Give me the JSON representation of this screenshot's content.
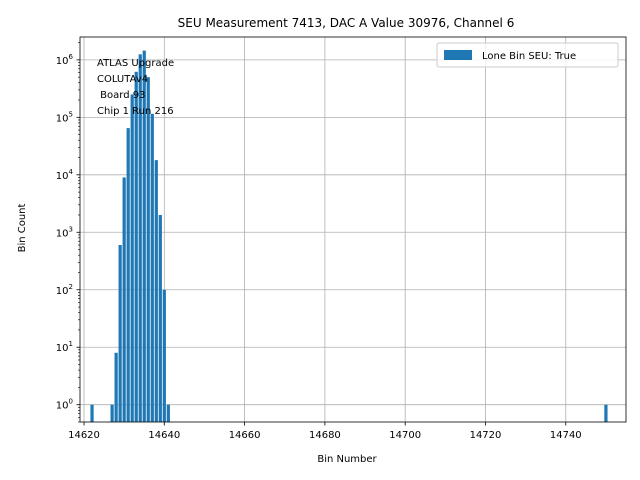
{
  "chart_data": {
    "type": "bar",
    "title": "SEU Measurement 7413, DAC A Value 30976, Channel 6",
    "xlabel": "Bin Number",
    "ylabel": "Bin Count",
    "yscale": "log",
    "xlim": [
      14619,
      14755
    ],
    "ylim": [
      0.5,
      2500000
    ],
    "grid": true,
    "legend": {
      "location": "top-right",
      "entries": [
        "Lone Bin SEU: True"
      ]
    },
    "annotation": [
      "ATLAS Upgrade",
      "COLUTAv4",
      " Board 93",
      "Chip 1 Run 216"
    ],
    "x_ticks": [
      14620,
      14640,
      14660,
      14680,
      14700,
      14720,
      14740
    ],
    "x_tick_labels": [
      "14620",
      "14640",
      "14660",
      "14680",
      "14700",
      "14720",
      "14740"
    ],
    "y_ticks": [
      1,
      10,
      100,
      1000,
      10000,
      100000,
      1000000
    ],
    "y_tick_exponents": [
      "0",
      "1",
      "2",
      "3",
      "4",
      "5",
      "6"
    ],
    "y_tick_base": "10",
    "bar_width": 0.8,
    "series": [
      {
        "name": "Lone Bin SEU: True",
        "color": "#1f77b4",
        "bins": [
          14622,
          14627,
          14628,
          14629,
          14630,
          14631,
          14632,
          14633,
          14634,
          14635,
          14636,
          14637,
          14638,
          14639,
          14640,
          14641,
          14750
        ],
        "values": [
          1,
          1,
          8,
          600,
          9000,
          65000,
          250000,
          620000,
          1250000,
          1450000,
          500000,
          115000,
          18000,
          2000,
          100,
          1,
          1
        ]
      }
    ]
  }
}
